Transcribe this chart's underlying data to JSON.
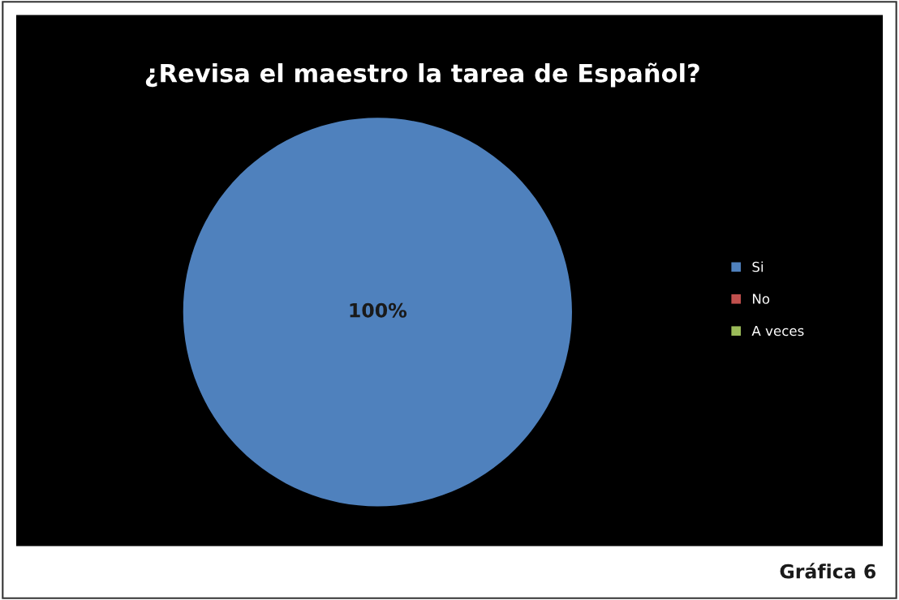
{
  "chart_data": {
    "type": "pie",
    "title": "¿Revisa el maestro la tarea de Español?",
    "categories": [
      "Si",
      "No",
      "A veces"
    ],
    "values": [
      100,
      0,
      0
    ],
    "colors": [
      "#4f81bd",
      "#c0504d",
      "#9bbb59"
    ],
    "value_labels": [
      "100%",
      null,
      null
    ],
    "legend": "right",
    "annotations": [
      "Gráfica 6"
    ]
  }
}
